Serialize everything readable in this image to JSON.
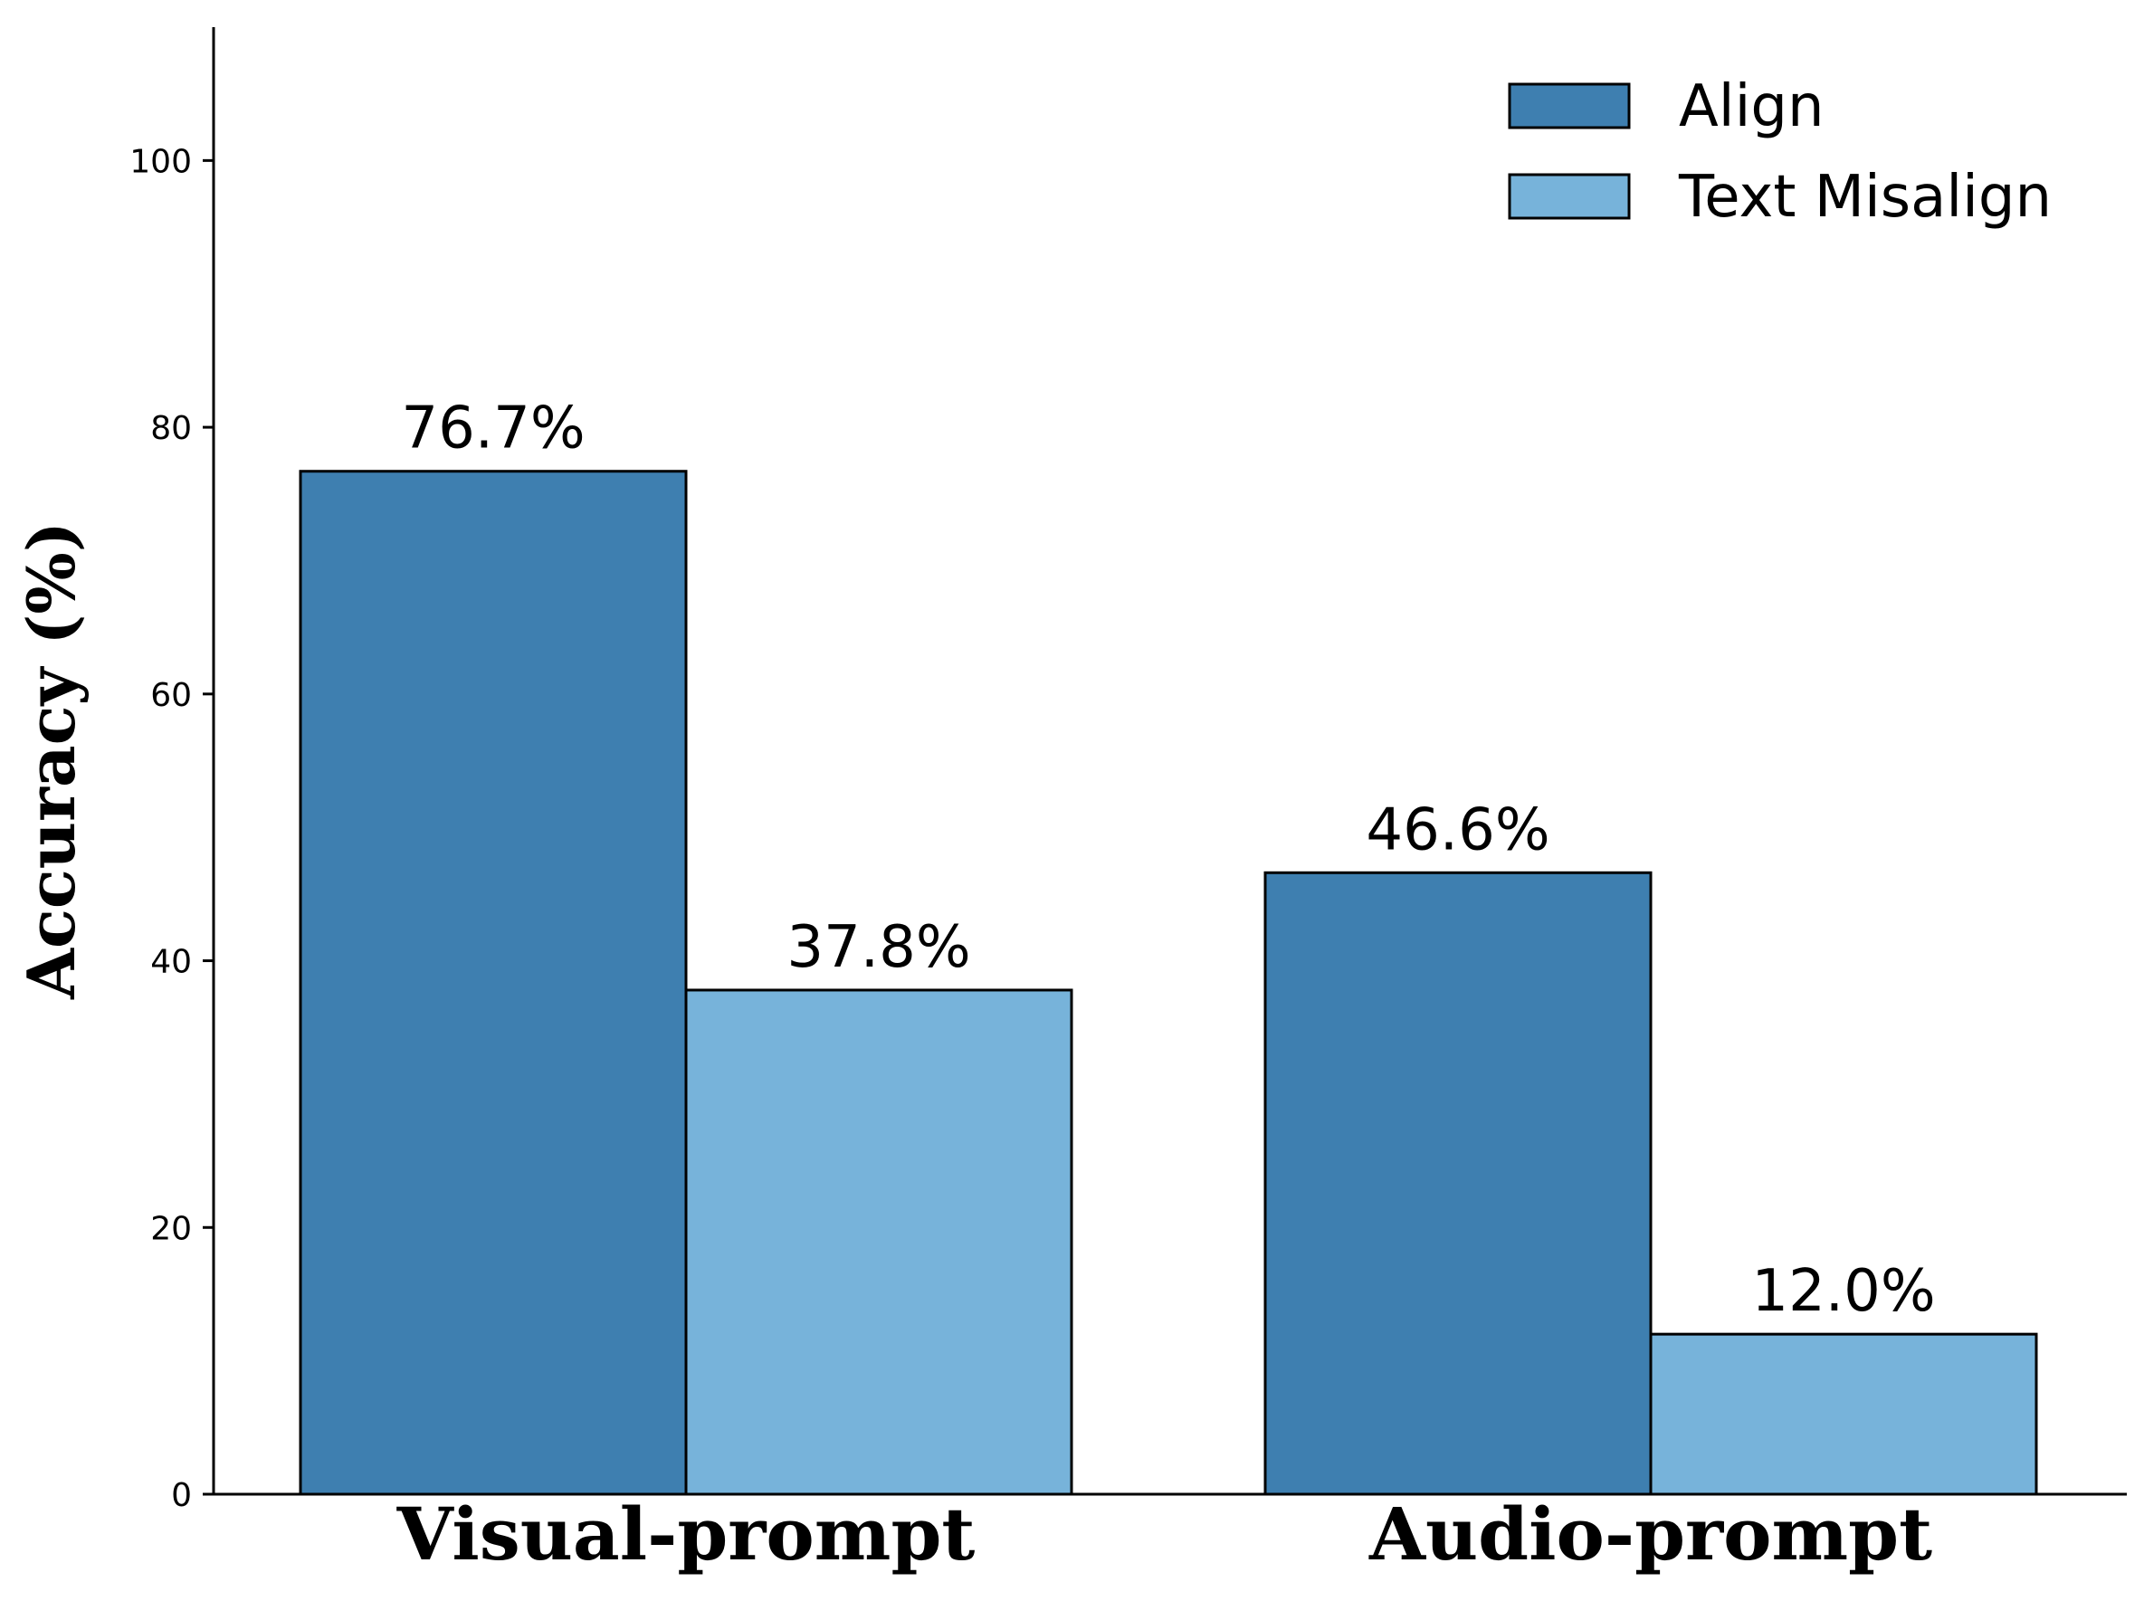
{
  "chart_data": {
    "type": "bar",
    "categories": [
      "Visual-prompt",
      "Audio-prompt"
    ],
    "series": [
      {
        "name": "Align",
        "values": [
          76.7,
          46.6
        ],
        "color": "#3e7fb0"
      },
      {
        "name": "Text Misalign",
        "values": [
          37.8,
          12.0
        ],
        "color": "#77b3da"
      }
    ],
    "data_labels": [
      [
        "76.7%",
        "46.6%"
      ],
      [
        "37.8%",
        "12.0%"
      ]
    ],
    "title": "",
    "xlabel": "",
    "ylabel": "Accuracy (%)",
    "ylim": [
      0,
      110
    ],
    "yticks": [
      0,
      20,
      40,
      60,
      80,
      100
    ],
    "grid": false,
    "legend_position": "top-right"
  }
}
